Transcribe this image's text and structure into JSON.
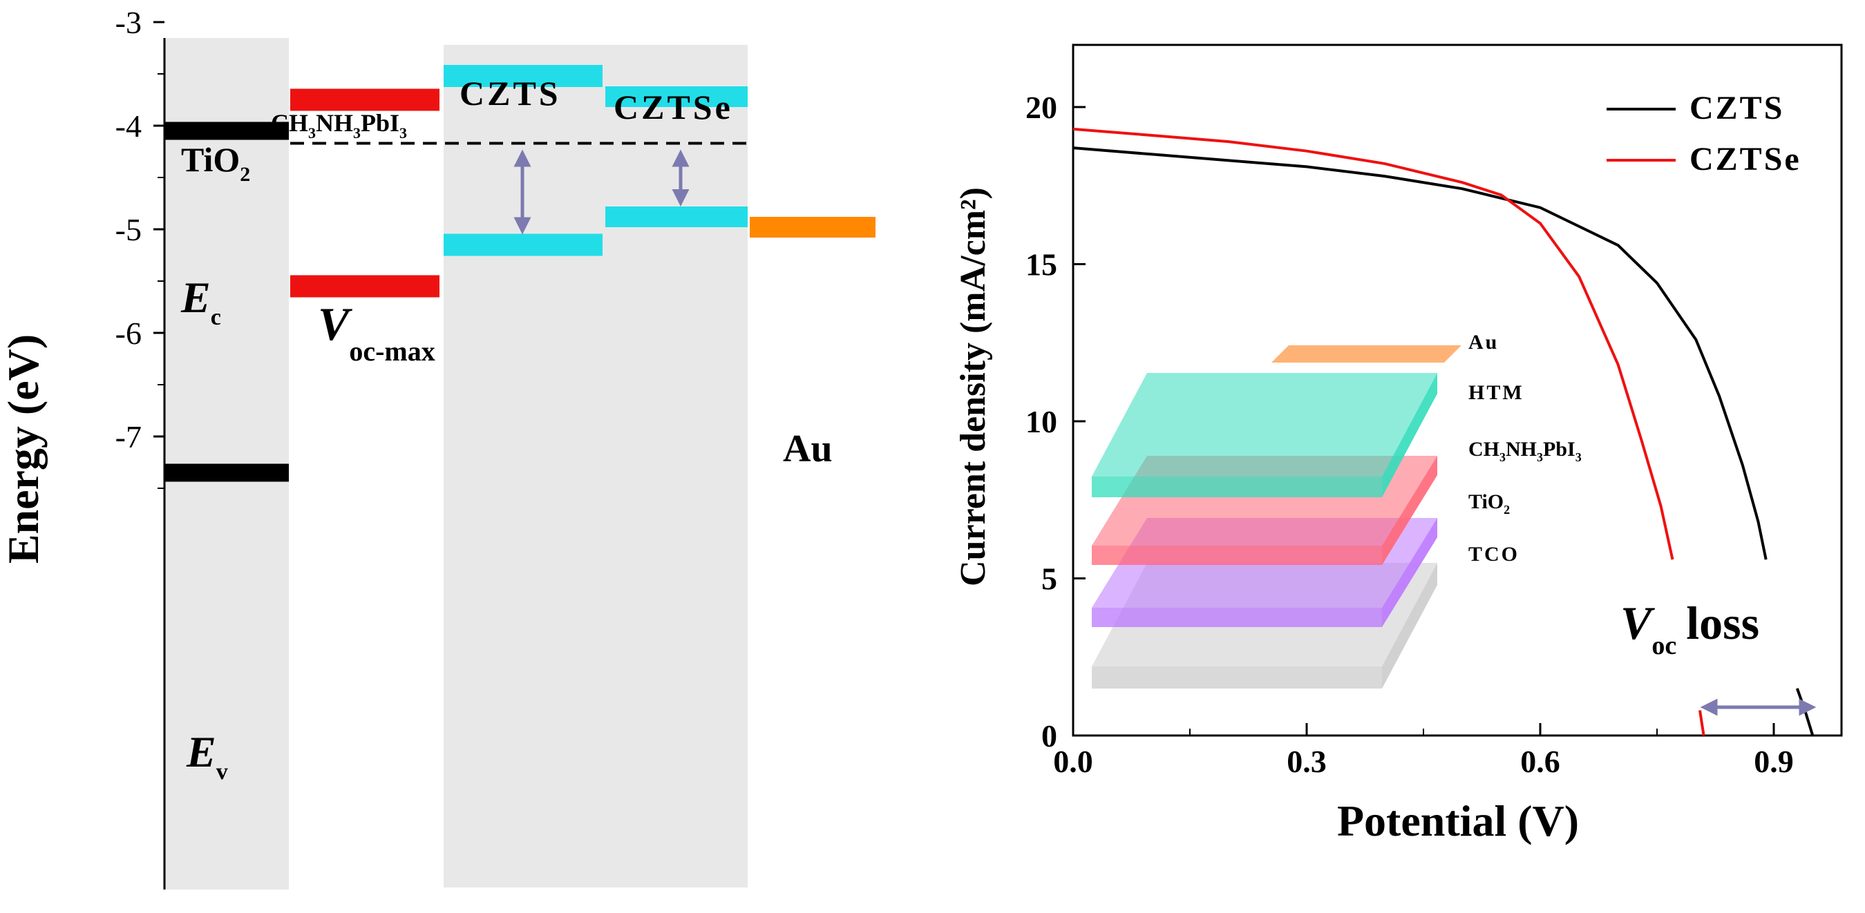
{
  "chart_data": [
    {
      "type": "energy-level-diagram",
      "ylabel": "Energy (eV)",
      "ylim": [
        -7.8,
        -3.0
      ],
      "yticks": [
        "-3",
        "-4",
        "-5",
        "-6",
        "-7"
      ],
      "materials": [
        {
          "name": "TiO",
          "sub": "2",
          "levels": [
            -4.05,
            -7.35
          ],
          "color": "#000000"
        },
        {
          "name": "CH",
          "formula": [
            "CH",
            "3",
            "NH",
            "3",
            "PbI",
            "3"
          ],
          "levels": [
            -3.75,
            -5.55
          ],
          "color": "#ee1111"
        },
        {
          "name": "CZTS",
          "levels": [
            -3.52,
            -5.15
          ],
          "color": "#22dde8"
        },
        {
          "name": "CZTSe",
          "levels": [
            -3.72,
            -4.88
          ],
          "color": "#22dde8"
        },
        {
          "name": "Au",
          "levels": [
            -4.98
          ],
          "color": "#ff8800"
        }
      ],
      "ec_level": -4.17,
      "labels": {
        "ec": {
          "main": "E",
          "sub": "c"
        },
        "ev": {
          "main": "E",
          "sub": "v"
        },
        "voc_max": {
          "main": "V",
          "sub": "oc-max"
        }
      }
    },
    {
      "type": "line",
      "xlabel": "Potential (V)",
      "ylabel": "Current density (mA/cm²)",
      "xlim": [
        0,
        0.96
      ],
      "ylim": [
        0,
        22
      ],
      "xticks": [
        "0.0",
        "0.3",
        "0.6",
        "0.9"
      ],
      "yticks": [
        "0",
        "5",
        "10",
        "15",
        "20"
      ],
      "legend_position": "top-right",
      "series": [
        {
          "name": "CZTS",
          "color": "#000000",
          "points": [
            [
              0.0,
              18.7
            ],
            [
              0.1,
              18.5
            ],
            [
              0.2,
              18.3
            ],
            [
              0.3,
              18.1
            ],
            [
              0.4,
              17.8
            ],
            [
              0.5,
              17.4
            ],
            [
              0.6,
              16.8
            ],
            [
              0.7,
              15.6
            ],
            [
              0.75,
              14.4
            ],
            [
              0.8,
              12.6
            ],
            [
              0.83,
              10.8
            ],
            [
              0.86,
              8.6
            ],
            [
              0.88,
              6.8
            ],
            [
              0.89,
              5.6
            ]
          ]
        },
        {
          "name": "CZTSe",
          "color": "#ee1111",
          "points": [
            [
              0.0,
              19.3
            ],
            [
              0.1,
              19.1
            ],
            [
              0.2,
              18.9
            ],
            [
              0.3,
              18.6
            ],
            [
              0.4,
              18.2
            ],
            [
              0.5,
              17.6
            ],
            [
              0.55,
              17.2
            ],
            [
              0.6,
              16.3
            ],
            [
              0.65,
              14.6
            ],
            [
              0.7,
              11.8
            ],
            [
              0.73,
              9.4
            ],
            [
              0.755,
              7.3
            ],
            [
              0.77,
              5.6
            ]
          ]
        }
      ],
      "tails": [
        {
          "color": "#000000",
          "points": [
            [
              0.93,
              1.5
            ],
            [
              0.94,
              0.8
            ],
            [
              0.95,
              0.0
            ]
          ]
        },
        {
          "color": "#ee1111",
          "points": [
            [
              0.805,
              0.8
            ],
            [
              0.81,
              0.0
            ]
          ]
        }
      ],
      "voc_loss": {
        "main": "V",
        "sub": "oc",
        "text": "loss",
        "x_from": 0.81,
        "x_to": 0.95,
        "y": 0.9
      },
      "inset_layers": [
        {
          "label": "Au",
          "color": "#ffaa66"
        },
        {
          "label": "HTM",
          "color": "#33ddbb"
        },
        {
          "label": "CH",
          "formula": [
            "CH",
            "3",
            "NH",
            "3",
            "PbI",
            "3"
          ],
          "color": "#ff6677"
        },
        {
          "label": "TiO",
          "sub": "2",
          "color": "#bb77ff"
        },
        {
          "label": "TCO",
          "color": "#cccccc"
        }
      ]
    }
  ]
}
